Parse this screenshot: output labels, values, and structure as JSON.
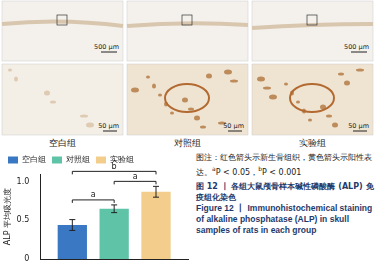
{
  "panels": [
    {
      "label": "空白组",
      "scale_top": "500 μm",
      "scale_bottom": "50 μm"
    },
    {
      "label": "对照组",
      "scale_bottom": "50 μm"
    },
    {
      "label": "实验组",
      "scale_top": "500 μm",
      "scale_bottom": "50 μm"
    }
  ],
  "chart_data": {
    "type": "bar",
    "y_label": "ALP 平均吸光度",
    "categories": [
      null
    ],
    "series": [
      {
        "name": "空白组",
        "color": "#3b78c3",
        "values": [
          0.44
        ],
        "errors": [
          0.07
        ]
      },
      {
        "name": "对照组",
        "color": "#5fc3a7",
        "values": [
          0.65
        ],
        "errors": [
          0.05
        ]
      },
      {
        "name": "实验组",
        "color": "#f2cd8b",
        "values": [
          0.87
        ],
        "errors": [
          0.07
        ]
      }
    ],
    "ylim": [
      0,
      1.1
    ],
    "yticks": [
      0,
      0.5,
      {
        "value": 1,
        "label": "1.0"
      }
    ],
    "grid": false,
    "legend": "top-left",
    "tick_labels": "y",
    "significance": [
      {
        "from": "空白组",
        "to": "对照组",
        "label": "a"
      },
      {
        "from": "对照组",
        "to": "实验组",
        "label": "a"
      },
      {
        "from": "空白组",
        "to": "实验组",
        "label": "b"
      }
    ]
  },
  "caption": {
    "note": "图注：红色箭头示新生骨组织，黄色箭头示阳性表达。",
    "significance_notes": [
      {
        "mark": "a",
        "text": "P < 0.05，"
      },
      {
        "mark": "b",
        "text": "P < 0.001"
      }
    ],
    "title_cn": "图 12 丨 各组大鼠颅骨样本碱性磷酸酶 (ALP) 免疫组化染色",
    "title_en": "Figure 12 丨 Immunohistochemical staining of alkaline phosphatase (ALP) in skull samples of rats in each group"
  }
}
